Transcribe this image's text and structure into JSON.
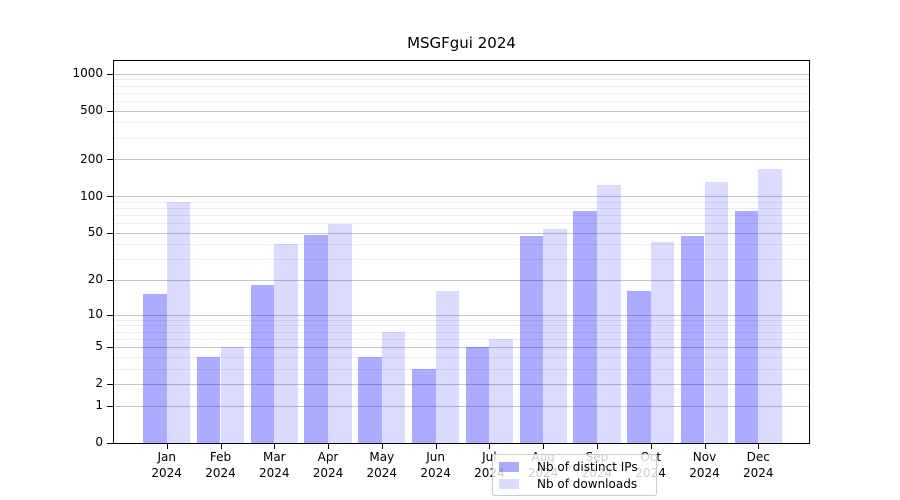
{
  "title": "MSGFgui 2024",
  "chart_data": {
    "type": "bar",
    "categories": [
      "Jan",
      "Feb",
      "Mar",
      "Apr",
      "May",
      "Jun",
      "Jul",
      "Aug",
      "Sep",
      "Oct",
      "Nov",
      "Dec"
    ],
    "year": "2024",
    "series": [
      {
        "name": "Nb of distinct IPs",
        "values": [
          15,
          4,
          18,
          48,
          4,
          3,
          5,
          47,
          75,
          16,
          47,
          76
        ],
        "color": "rgba(0,0,255,0.33)",
        "color_hex_on_white": "#ababff"
      },
      {
        "name": "Nb of downloads",
        "values": [
          90,
          5,
          40,
          59,
          7,
          16,
          6,
          54,
          123,
          42,
          130,
          168
        ],
        "color": "rgba(0,0,255,0.14)",
        "color_hex_on_white": "#dbdbff"
      }
    ],
    "yscale": "log1p",
    "yticks": [
      0,
      1,
      2,
      5,
      10,
      20,
      50,
      100,
      200,
      500,
      1000
    ],
    "minor_ticks": [
      3,
      4,
      6,
      7,
      8,
      9,
      30,
      40,
      60,
      70,
      80,
      90,
      300,
      400,
      600,
      700,
      800,
      900
    ],
    "ylim": [
      0,
      1275
    ],
    "xlabel": "",
    "ylabel": "",
    "grid": true,
    "legend_position": "lower center"
  },
  "colors": {
    "major_grid": "#c6c6c6",
    "minor_grid": "#ededed",
    "axis": "#000000",
    "legend_border": "#cccccc"
  }
}
